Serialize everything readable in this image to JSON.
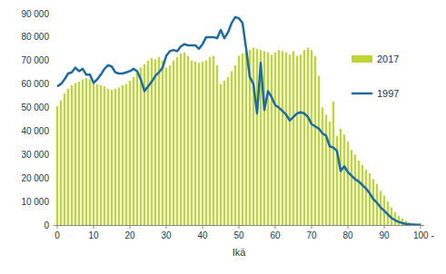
{
  "chart_data": {
    "type": "bar",
    "x_label": "Ikä",
    "x": [
      0,
      1,
      2,
      3,
      4,
      5,
      6,
      7,
      8,
      9,
      10,
      11,
      12,
      13,
      14,
      15,
      16,
      17,
      18,
      19,
      20,
      21,
      22,
      23,
      24,
      25,
      26,
      27,
      28,
      29,
      30,
      31,
      32,
      33,
      34,
      35,
      36,
      37,
      38,
      39,
      40,
      41,
      42,
      43,
      44,
      45,
      46,
      47,
      48,
      49,
      50,
      51,
      52,
      53,
      54,
      55,
      56,
      57,
      58,
      59,
      60,
      61,
      62,
      63,
      64,
      65,
      66,
      67,
      68,
      69,
      70,
      71,
      72,
      73,
      74,
      75,
      76,
      77,
      78,
      79,
      80,
      81,
      82,
      83,
      84,
      85,
      86,
      87,
      88,
      89,
      90,
      91,
      92,
      93,
      94,
      95,
      96,
      97,
      98,
      99,
      100
    ],
    "series": [
      {
        "name": "2017",
        "type": "bar",
        "color": "#bdd537",
        "values": [
          50500,
          53000,
          56000,
          58000,
          59500,
          60500,
          61000,
          62000,
          62500,
          62000,
          61000,
          60000,
          59500,
          59000,
          58000,
          57500,
          58000,
          58500,
          59500,
          60000,
          61500,
          63000,
          65000,
          67000,
          68500,
          70000,
          71000,
          70500,
          71500,
          70000,
          67000,
          68000,
          70000,
          71500,
          73000,
          73500,
          72000,
          70000,
          69500,
          69000,
          69500,
          70000,
          71500,
          72000,
          68000,
          60000,
          61500,
          63000,
          65500,
          68000,
          72000,
          73000,
          74000,
          74500,
          75500,
          75000,
          74500,
          74000,
          73500,
          72500,
          73500,
          74500,
          74000,
          73500,
          72500,
          74000,
          72000,
          72500,
          74500,
          75500,
          74500,
          72000,
          63500,
          50000,
          47000,
          44000,
          52500,
          38000,
          41000,
          38500,
          35500,
          32000,
          30000,
          27500,
          25500,
          23500,
          22000,
          19500,
          17500,
          14500,
          12500,
          10000,
          7500,
          5500,
          4000,
          2800,
          1800,
          1100,
          700,
          400,
          600
        ]
      },
      {
        "name": "1997",
        "type": "line",
        "color": "#1d6b9f",
        "values": [
          59000,
          60000,
          62000,
          64500,
          65000,
          67000,
          65500,
          66500,
          64000,
          64000,
          60500,
          62000,
          64000,
          66500,
          68000,
          67500,
          65000,
          64500,
          64500,
          65000,
          65500,
          66500,
          65500,
          62000,
          57000,
          59000,
          61000,
          63500,
          65000,
          67000,
          72000,
          74000,
          74500,
          74000,
          76000,
          77000,
          76500,
          76500,
          76500,
          75000,
          77000,
          80000,
          80000,
          80000,
          79500,
          83000,
          79500,
          82000,
          86000,
          88500,
          88000,
          86000,
          75000,
          63000,
          60000,
          47500,
          69000,
          49000,
          57000,
          54500,
          51000,
          50000,
          48500,
          47000,
          44500,
          46000,
          47500,
          48000,
          47500,
          46000,
          43000,
          42000,
          41000,
          39000,
          38000,
          33500,
          33000,
          31500,
          23000,
          25000,
          22500,
          21000,
          19500,
          18500,
          17000,
          15500,
          13500,
          11000,
          9500,
          7500,
          6000,
          4500,
          3000,
          2000,
          1300,
          800,
          500,
          300,
          200,
          100,
          100
        ]
      }
    ],
    "xlim": [
      -1,
      101
    ],
    "xticks": [
      0,
      10,
      20,
      30,
      40,
      50,
      60,
      70,
      80,
      90,
      {
        "value": 100,
        "label": "100 -"
      }
    ],
    "ylim": [
      0,
      90000
    ],
    "yticks": [
      0,
      {
        "value": 10000,
        "label": "10 000"
      },
      {
        "value": 20000,
        "label": "20 000"
      },
      {
        "value": 30000,
        "label": "30 000"
      },
      {
        "value": 40000,
        "label": "40 000"
      },
      {
        "value": 50000,
        "label": "50 000"
      },
      {
        "value": 60000,
        "label": "60 000"
      },
      {
        "value": 70000,
        "label": "70 000"
      },
      {
        "value": 80000,
        "label": "80 000"
      },
      {
        "value": 90000,
        "label": "90 000"
      }
    ],
    "grid": false,
    "legend": "right"
  }
}
